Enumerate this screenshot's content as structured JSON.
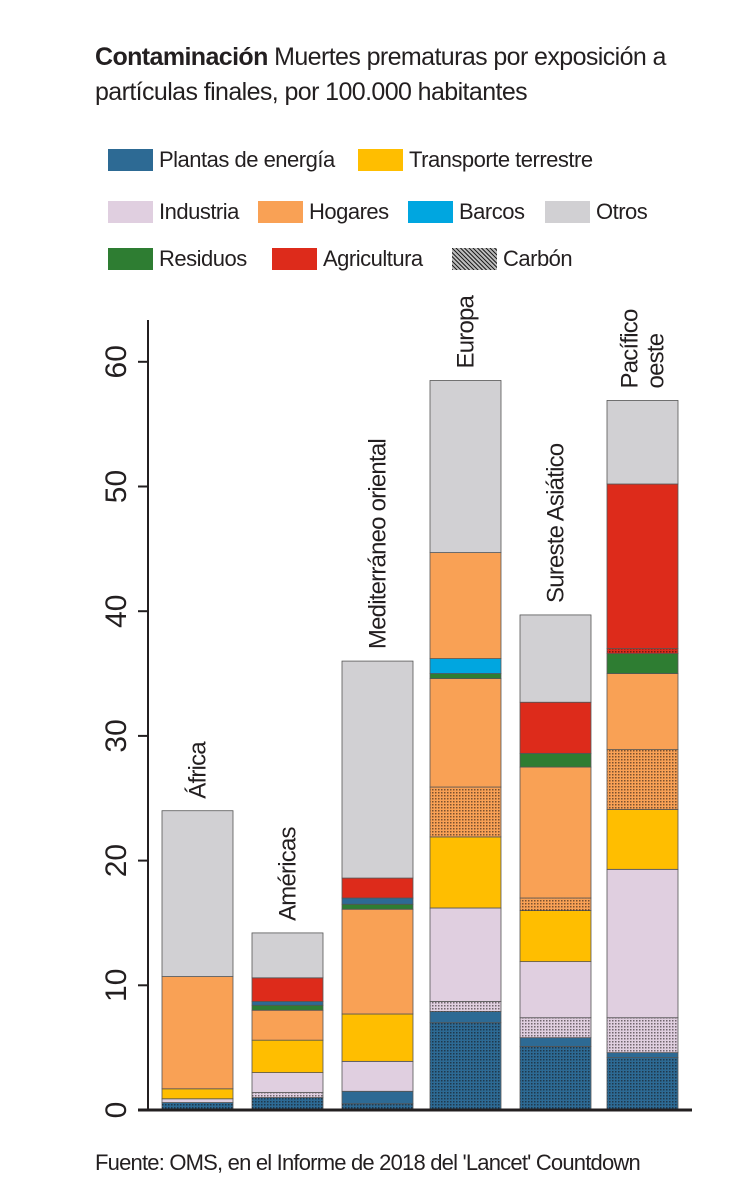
{
  "title": {
    "bold": "Contaminación",
    "text": "Muertes prematuras por exposición a partículas finales, por 100.000 habitantes"
  },
  "legend": [
    {
      "key": "plantas",
      "label": "Plantas de energía",
      "color": "#2d6a94"
    },
    {
      "key": "transporte",
      "label": "Transporte terrestre",
      "color": "#ffbe00"
    },
    {
      "key": "industria",
      "label": "Industria",
      "color": "#e0cfe0"
    },
    {
      "key": "hogares",
      "label": "Hogares",
      "color": "#f9a155"
    },
    {
      "key": "barcos",
      "label": "Barcos",
      "color": "#00a6e0"
    },
    {
      "key": "otros",
      "label": "Otros",
      "color": "#d1d0d3"
    },
    {
      "key": "residuos",
      "label": "Residuos",
      "color": "#2e7d32"
    },
    {
      "key": "agricultura",
      "label": "Agricultura",
      "color": "#dd2b1b"
    },
    {
      "key": "carbon",
      "label": "Carbón",
      "color": "#555555"
    }
  ],
  "chart_data": {
    "type": "bar",
    "stacked": true,
    "ylim": [
      0,
      64
    ],
    "yticks": [
      "0",
      "10",
      "20",
      "30",
      "40",
      "50",
      "60"
    ],
    "categories": [
      "África",
      "Américas",
      "Mediterráneo oriental",
      "Europa",
      "Sureste Asiático",
      "Pacífico oeste"
    ],
    "bars": [
      {
        "label": [
          "África"
        ],
        "segments": [
          {
            "cat": "plantas",
            "coal": true,
            "top": 0.6
          },
          {
            "cat": "industria",
            "coal": false,
            "top": 0.9
          },
          {
            "cat": "transporte",
            "coal": false,
            "top": 1.7
          },
          {
            "cat": "hogares",
            "coal": false,
            "top": 10.7
          },
          {
            "cat": "otros",
            "coal": false,
            "top": 24.0
          }
        ]
      },
      {
        "label": [
          "Américas"
        ],
        "segments": [
          {
            "cat": "plantas",
            "coal": true,
            "top": 1.0
          },
          {
            "cat": "industria",
            "coal": true,
            "top": 1.4
          },
          {
            "cat": "industria",
            "coal": false,
            "top": 3.0
          },
          {
            "cat": "transporte",
            "coal": false,
            "top": 5.6
          },
          {
            "cat": "hogares",
            "coal": false,
            "top": 8.0
          },
          {
            "cat": "residuos",
            "coal": false,
            "top": 8.4
          },
          {
            "cat": "plantas",
            "coal": false,
            "top": 8.7
          },
          {
            "cat": "agricultura",
            "coal": false,
            "top": 10.6
          },
          {
            "cat": "otros",
            "coal": false,
            "top": 14.2
          }
        ]
      },
      {
        "label": [
          "Mediterráneo oriental"
        ],
        "segments": [
          {
            "cat": "plantas",
            "coal": true,
            "top": 0.5
          },
          {
            "cat": "plantas",
            "coal": false,
            "top": 1.5
          },
          {
            "cat": "industria",
            "coal": false,
            "top": 3.9
          },
          {
            "cat": "transporte",
            "coal": false,
            "top": 7.7
          },
          {
            "cat": "hogares",
            "coal": false,
            "top": 16.1
          },
          {
            "cat": "residuos",
            "coal": false,
            "top": 16.5
          },
          {
            "cat": "plantas",
            "coal": false,
            "top": 17.0
          },
          {
            "cat": "agricultura",
            "coal": false,
            "top": 18.6
          },
          {
            "cat": "otros",
            "coal": false,
            "top": 36.0
          }
        ]
      },
      {
        "label": [
          "Europa"
        ],
        "segments": [
          {
            "cat": "plantas",
            "coal": true,
            "top": 7.0
          },
          {
            "cat": "plantas",
            "coal": false,
            "top": 7.9
          },
          {
            "cat": "industria",
            "coal": true,
            "top": 8.7
          },
          {
            "cat": "industria",
            "coal": false,
            "top": 16.2
          },
          {
            "cat": "transporte",
            "coal": false,
            "top": 21.9
          },
          {
            "cat": "hogares",
            "coal": true,
            "top": 25.9
          },
          {
            "cat": "hogares",
            "coal": false,
            "top": 34.6
          },
          {
            "cat": "residuos",
            "coal": false,
            "top": 35.0
          },
          {
            "cat": "barcos",
            "coal": false,
            "top": 36.2
          },
          {
            "cat": "hogares",
            "coal": false,
            "top": 44.7
          },
          {
            "cat": "otros",
            "coal": false,
            "top": 58.5
          }
        ]
      },
      {
        "label": [
          "Sureste Asiático"
        ],
        "segments": [
          {
            "cat": "plantas",
            "coal": true,
            "top": 5.1
          },
          {
            "cat": "plantas",
            "coal": false,
            "top": 5.8
          },
          {
            "cat": "industria",
            "coal": true,
            "top": 7.4
          },
          {
            "cat": "industria",
            "coal": false,
            "top": 11.9
          },
          {
            "cat": "transporte",
            "coal": false,
            "top": 16.0
          },
          {
            "cat": "hogares",
            "coal": true,
            "top": 17.0
          },
          {
            "cat": "hogares",
            "coal": false,
            "top": 27.5
          },
          {
            "cat": "residuos",
            "coal": false,
            "top": 28.6
          },
          {
            "cat": "agricultura",
            "coal": false,
            "top": 32.7
          },
          {
            "cat": "otros",
            "coal": false,
            "top": 39.7
          }
        ]
      },
      {
        "label": [
          "Pacífico",
          "oeste"
        ],
        "segments": [
          {
            "cat": "plantas",
            "coal": true,
            "top": 4.2
          },
          {
            "cat": "plantas",
            "coal": false,
            "top": 4.6
          },
          {
            "cat": "industria",
            "coal": true,
            "top": 7.4
          },
          {
            "cat": "industria",
            "coal": false,
            "top": 19.3
          },
          {
            "cat": "transporte",
            "coal": false,
            "top": 24.1
          },
          {
            "cat": "hogares",
            "coal": true,
            "top": 28.9
          },
          {
            "cat": "hogares",
            "coal": false,
            "top": 35.0
          },
          {
            "cat": "residuos",
            "coal": false,
            "top": 36.6
          },
          {
            "cat": "agricultura",
            "coal": true,
            "top": 37.0
          },
          {
            "cat": "agricultura",
            "coal": false,
            "top": 50.2
          },
          {
            "cat": "otros",
            "coal": false,
            "top": 56.9
          }
        ]
      }
    ]
  },
  "source": "Fuente: OMS, en el Informe de 2018 del 'Lancet' Countdown"
}
